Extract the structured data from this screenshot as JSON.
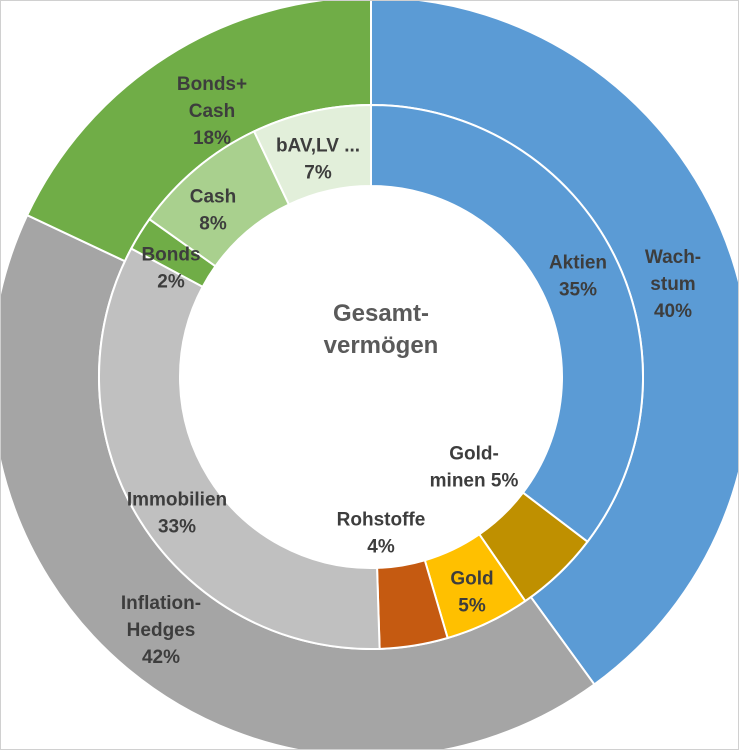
{
  "chart_data": {
    "type": "sunburst",
    "center_label": [
      "Gesamt-",
      "vermögen"
    ],
    "outer_ring": [
      {
        "name": "Wachstum",
        "label": [
          "Wach-",
          "stum",
          "40%"
        ],
        "value": 40,
        "color": "#5b9bd5"
      },
      {
        "name": "Inflation-Hedges",
        "label": [
          "Inflation-",
          "Hedges",
          "42%"
        ],
        "value": 42,
        "color": "#a5a5a5"
      },
      {
        "name": "Bonds+Cash",
        "label": [
          "Bonds+",
          "Cash",
          "18%"
        ],
        "value": 18,
        "color": "#70ad47"
      }
    ],
    "inner_ring": [
      {
        "name": "Aktien",
        "label": [
          "Aktien",
          "35%"
        ],
        "value": 35,
        "color": "#5b9bd5"
      },
      {
        "name": "Goldminen",
        "label": [
          "Gold-",
          "minen 5%"
        ],
        "value": 5,
        "color": "#bf9000"
      },
      {
        "name": "Gold",
        "label": [
          "Gold",
          "5%"
        ],
        "value": 5,
        "color": "#ffc000"
      },
      {
        "name": "Rohstoffe",
        "label": [
          "Rohstoffe",
          "4%"
        ],
        "value": 4,
        "color": "#c55a11"
      },
      {
        "name": "Immobilien",
        "label": [
          "Immobilien",
          "33%"
        ],
        "value": 33,
        "color": "#c0c0c0"
      },
      {
        "name": "Bonds",
        "label": [
          "Bonds",
          "2%"
        ],
        "value": 2,
        "color": "#70ad47"
      },
      {
        "name": "Cash",
        "label": [
          "Cash",
          "8%"
        ],
        "value": 8,
        "color": "#a9d08e"
      },
      {
        "name": "bAV,LV ...",
        "label": [
          "bAV,LV ...",
          "7%"
        ],
        "value": 7,
        "color": "#e2efda"
      }
    ]
  }
}
